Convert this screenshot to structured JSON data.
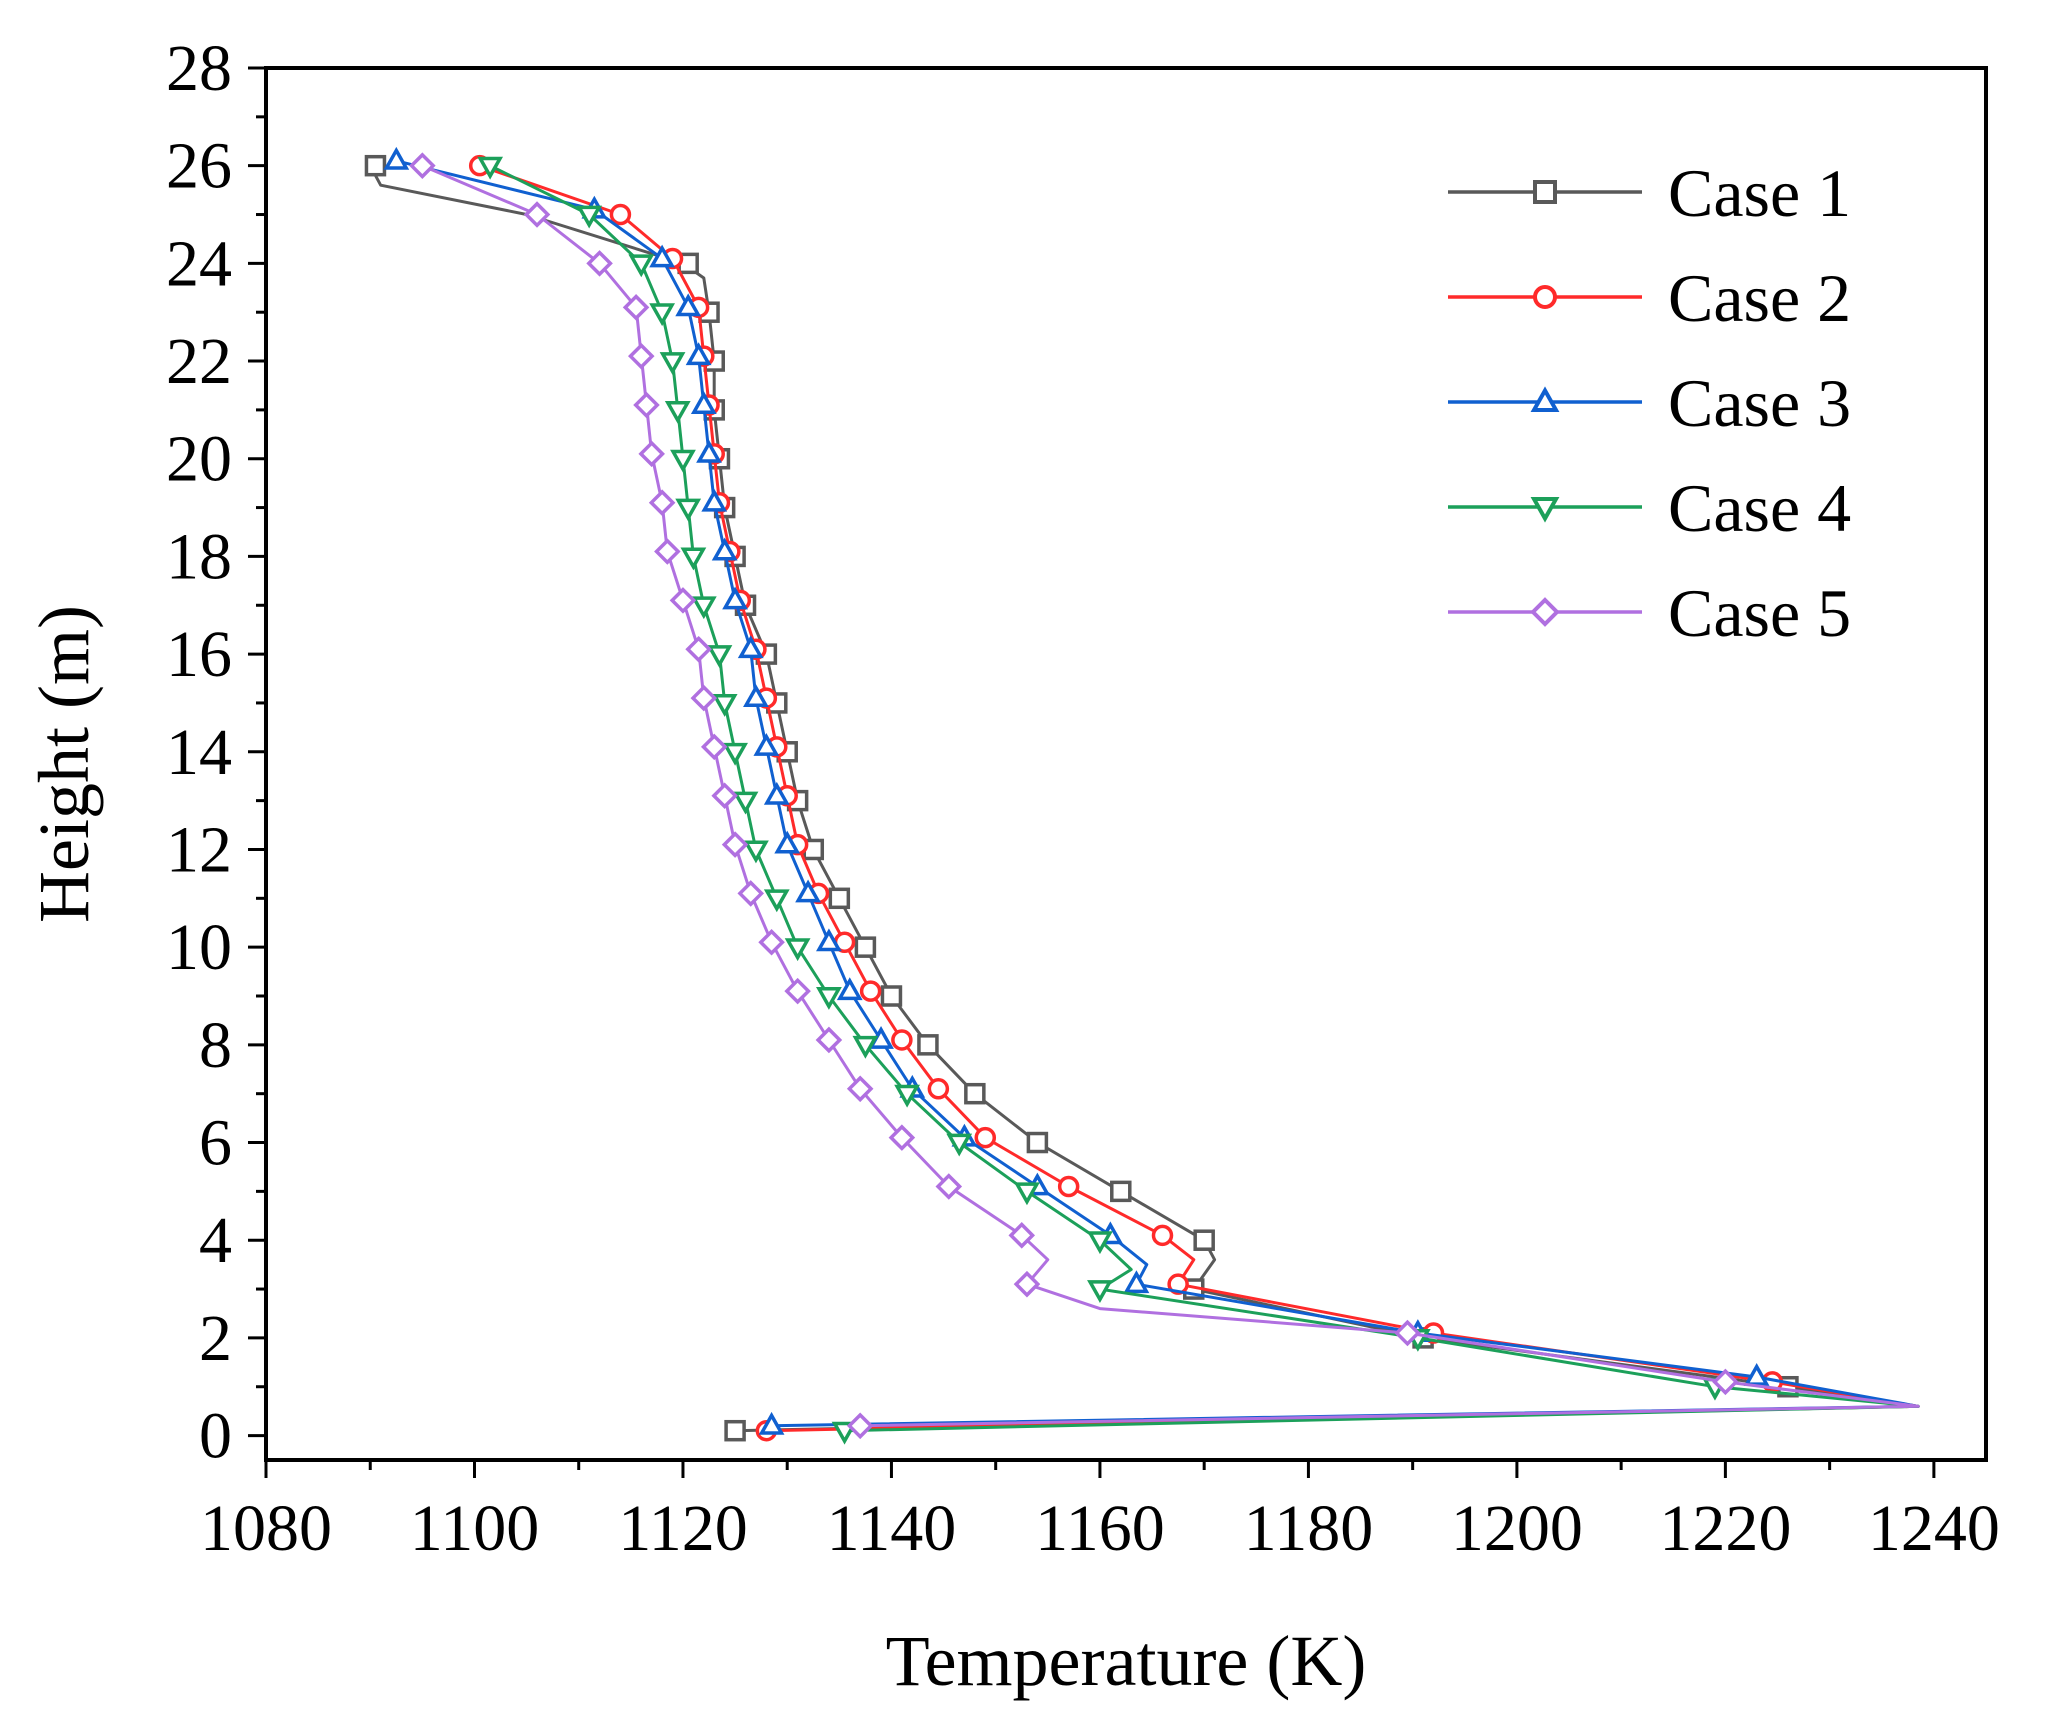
{
  "chart_data": {
    "type": "line",
    "title": "",
    "xlabel": "Temperature (K)",
    "ylabel": "Height (m)",
    "xlim": [
      1080,
      1245
    ],
    "ylim": [
      -0.5,
      28
    ],
    "xticks": [
      "1080",
      "1100",
      "1120",
      "1140",
      "1160",
      "1180",
      "1200",
      "1220",
      "1240"
    ],
    "yticks": [
      "0",
      "2",
      "4",
      "6",
      "8",
      "10",
      "12",
      "14",
      "16",
      "18",
      "20",
      "22",
      "24",
      "26",
      "28"
    ],
    "grid": false,
    "legend_position": "top-right",
    "series": [
      {
        "name": "Case 1",
        "color": "#595959",
        "marker": "square",
        "x": [
          1125,
          1238.5,
          1226,
          1191,
          1169,
          1171,
          1170,
          1162,
          1154,
          1148,
          1143.5,
          1140,
          1137.5,
          1135,
          1132.5,
          1131,
          1130,
          1129,
          1128,
          1126,
          1125,
          1124,
          1123.5,
          1123,
          1123,
          1122.5,
          1122,
          1120,
          1105,
          1091,
          1090
        ],
        "y": [
          0.1,
          0.6,
          1.0,
          2.0,
          3.0,
          3.6,
          4.0,
          5.0,
          6.0,
          7.0,
          8.0,
          9.0,
          10.0,
          11.0,
          12.0,
          13.0,
          14.0,
          15.0,
          16.0,
          17.0,
          18.0,
          19.0,
          20.0,
          21.0,
          22.0,
          23.0,
          23.7,
          24.0,
          25.0,
          25.6,
          26.0
        ],
        "markers_x": [
          1125,
          1226,
          1191,
          1169,
          1170,
          1162,
          1154,
          1148,
          1143.5,
          1140,
          1137.5,
          1135,
          1132.5,
          1131,
          1130,
          1129,
          1128,
          1126,
          1125,
          1124,
          1123.5,
          1123,
          1123,
          1122.5,
          1120.5,
          1090.5
        ],
        "markers_y": [
          0.1,
          1.0,
          2.0,
          3.0,
          4.0,
          5.0,
          6.0,
          7.0,
          8.0,
          9.0,
          10.0,
          11.0,
          12.0,
          13.0,
          14.0,
          15.0,
          16.0,
          17.0,
          18.0,
          19.0,
          20.0,
          21.0,
          22.0,
          23.0,
          24.0,
          26.0
        ]
      },
      {
        "name": "Case 2",
        "color": "#ff2a2a",
        "marker": "circle",
        "x": [
          1128,
          1238.5,
          1224.5,
          1192,
          1167.5,
          1169,
          1166,
          1157,
          1149,
          1144.5,
          1141,
          1138,
          1135.5,
          1133,
          1131,
          1130,
          1129,
          1128,
          1127,
          1125.5,
          1124.5,
          1123.5,
          1123,
          1122.5,
          1122,
          1121.5,
          1119,
          1114,
          1100.5
        ],
        "y": [
          0.1,
          0.6,
          1.1,
          2.1,
          3.1,
          3.6,
          4.1,
          5.1,
          6.1,
          7.1,
          8.1,
          9.1,
          10.1,
          11.1,
          12.1,
          13.1,
          14.1,
          15.1,
          16.1,
          17.1,
          18.1,
          19.1,
          20.1,
          21.1,
          22.1,
          23.1,
          24.1,
          25.0,
          26.0
        ],
        "markers_x": [
          1128,
          1224.5,
          1192,
          1167.5,
          1166,
          1157,
          1149,
          1144.5,
          1141,
          1138,
          1135.5,
          1133,
          1131,
          1130,
          1129,
          1128,
          1127,
          1125.5,
          1124.5,
          1123.5,
          1123,
          1122.5,
          1122,
          1121.5,
          1119,
          1114,
          1100.5
        ],
        "markers_y": [
          0.1,
          1.1,
          2.1,
          3.1,
          4.1,
          5.1,
          6.1,
          7.1,
          8.1,
          9.1,
          10.1,
          11.1,
          12.1,
          13.1,
          14.1,
          15.1,
          16.1,
          17.1,
          18.1,
          19.1,
          20.1,
          21.1,
          22.1,
          23.1,
          24.1,
          25.0,
          26.0
        ]
      },
      {
        "name": "Case 3",
        "color": "#1060d0",
        "marker": "triangle-up",
        "x": [
          1128.5,
          1238.5,
          1223,
          1190.5,
          1163.5,
          1164.5,
          1161,
          1154,
          1147,
          1142,
          1139,
          1136,
          1134,
          1132,
          1130,
          1129,
          1128,
          1127,
          1126.5,
          1125,
          1124,
          1123,
          1122.5,
          1122,
          1121.5,
          1120.5,
          1118,
          1111.5,
          1092.5
        ],
        "y": [
          0.2,
          0.6,
          1.2,
          2.1,
          3.1,
          3.5,
          4.1,
          5.1,
          6.1,
          7.1,
          8.1,
          9.1,
          10.1,
          11.1,
          12.1,
          13.1,
          14.1,
          15.1,
          16.1,
          17.1,
          18.1,
          19.1,
          20.1,
          21.1,
          22.1,
          23.1,
          24.1,
          25.1,
          26.1
        ],
        "markers_x": [
          1128.5,
          1223,
          1190.5,
          1163.5,
          1161,
          1154,
          1147,
          1142,
          1139,
          1136,
          1134,
          1132,
          1130,
          1129,
          1128,
          1127,
          1126.5,
          1125,
          1124,
          1123,
          1122.5,
          1122,
          1121.5,
          1120.5,
          1118,
          1111.5,
          1092.5
        ],
        "markers_y": [
          0.2,
          1.2,
          2.1,
          3.1,
          4.1,
          5.1,
          6.1,
          7.1,
          8.1,
          9.1,
          10.1,
          11.1,
          12.1,
          13.1,
          14.1,
          15.1,
          16.1,
          17.1,
          18.1,
          19.1,
          20.1,
          21.1,
          22.1,
          23.1,
          24.1,
          25.1,
          26.1
        ]
      },
      {
        "name": "Case 4",
        "color": "#1ca05a",
        "marker": "triangle-down",
        "x": [
          1135.5,
          1238.5,
          1219,
          1190.5,
          1160,
          1163,
          1160,
          1153,
          1146.5,
          1141.5,
          1137.5,
          1134,
          1131,
          1129,
          1127,
          1126,
          1125,
          1124,
          1123.5,
          1122,
          1121,
          1120.5,
          1120,
          1119.5,
          1119,
          1118,
          1116,
          1111,
          1101.5
        ],
        "y": [
          0.1,
          0.6,
          1.0,
          2.0,
          3.0,
          3.4,
          4.0,
          5.0,
          6.0,
          7.0,
          8.0,
          9.0,
          10.0,
          11.0,
          12.0,
          13.0,
          14.0,
          15.0,
          16.0,
          17.0,
          18.0,
          19.0,
          20.0,
          21.0,
          22.0,
          23.0,
          24.0,
          25.0,
          26.0
        ],
        "markers_x": [
          1135.5,
          1219,
          1190.5,
          1160,
          1160,
          1153,
          1146.5,
          1141.5,
          1137.5,
          1134,
          1131,
          1129,
          1127,
          1126,
          1125,
          1124,
          1123.5,
          1122,
          1121,
          1120.5,
          1120,
          1119.5,
          1119,
          1118,
          1116,
          1111,
          1101.5
        ],
        "markers_y": [
          0.1,
          1.0,
          2.0,
          3.0,
          4.0,
          5.0,
          6.0,
          7.0,
          8.0,
          9.0,
          10.0,
          11.0,
          12.0,
          13.0,
          14.0,
          15.0,
          16.0,
          17.0,
          18.0,
          19.0,
          20.0,
          21.0,
          22.0,
          23.0,
          24.0,
          25.0,
          26.0
        ]
      },
      {
        "name": "Case 5",
        "color": "#b070e0",
        "marker": "diamond",
        "x": [
          1137,
          1238.5,
          1220,
          1189.5,
          1160,
          1153,
          1155,
          1152.5,
          1145.5,
          1141,
          1137,
          1134,
          1131,
          1128.5,
          1126.5,
          1125,
          1124,
          1123,
          1122,
          1121.5,
          1120,
          1118.5,
          1118,
          1117,
          1116.5,
          1116,
          1115.5,
          1112,
          1106,
          1095
        ],
        "y": [
          0.2,
          0.6,
          1.1,
          2.1,
          2.6,
          3.1,
          3.6,
          4.1,
          5.1,
          6.1,
          7.1,
          8.1,
          9.1,
          10.1,
          11.1,
          12.1,
          13.1,
          14.1,
          15.1,
          16.1,
          17.1,
          18.1,
          19.1,
          20.1,
          21.1,
          22.1,
          23.1,
          24.0,
          25.0,
          26.0
        ],
        "markers_x": [
          1137,
          1220,
          1189.5,
          1153,
          1152.5,
          1145.5,
          1141,
          1137,
          1134,
          1131,
          1128.5,
          1126.5,
          1125,
          1124,
          1123,
          1122,
          1121.5,
          1120,
          1118.5,
          1118,
          1117,
          1116.5,
          1116,
          1115.5,
          1112,
          1106,
          1095
        ],
        "markers_y": [
          0.2,
          1.1,
          2.1,
          3.1,
          4.1,
          5.1,
          6.1,
          7.1,
          8.1,
          9.1,
          10.1,
          11.1,
          12.1,
          13.1,
          14.1,
          15.1,
          16.1,
          17.1,
          18.1,
          19.1,
          20.1,
          21.1,
          22.1,
          23.1,
          24.0,
          25.0,
          26.0
        ]
      }
    ]
  }
}
